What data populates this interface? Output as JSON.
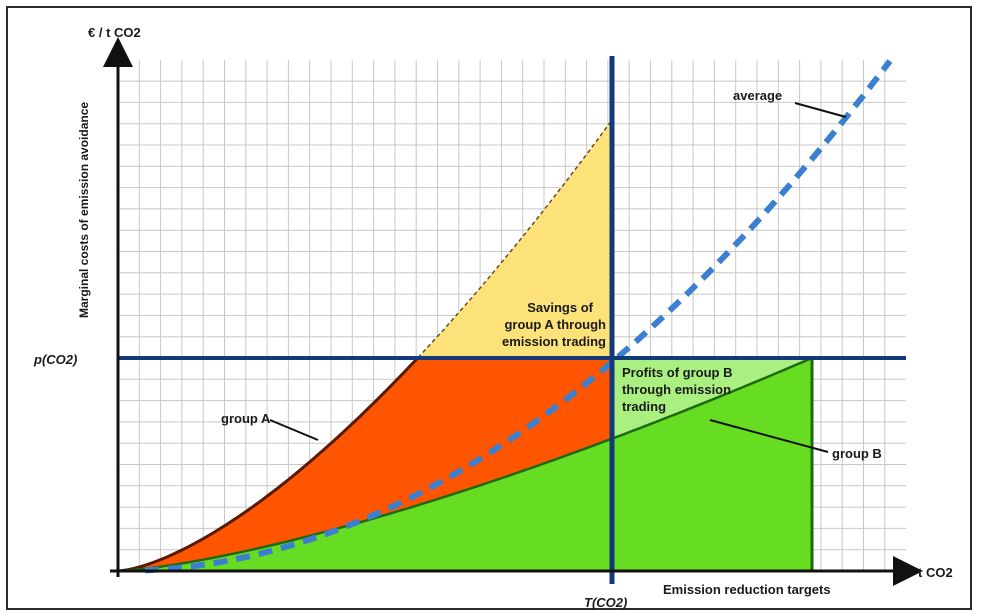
{
  "chart_data": {
    "type": "area",
    "title": "",
    "ylabel": "Marginal costs of emission avoidance",
    "y_unit": "€ / t CO2",
    "x_unit": "t CO2",
    "xlabel": "Emission reduction targets",
    "grid": true,
    "reference_lines": {
      "price": "p(CO2)",
      "target": "T(CO2)"
    },
    "series": [
      {
        "name": "group A",
        "color": "#ff5500"
      },
      {
        "name": "group B",
        "color": "#55dd11"
      },
      {
        "name": "average",
        "color": "#3a7fd0"
      }
    ],
    "annotations": {
      "savings_a": [
        "Savings of",
        "group A through",
        "emission trading"
      ],
      "profits_b": [
        "Profits of group B",
        "through emission",
        "trading"
      ]
    },
    "colors": {
      "group_a_area": "#ff5500",
      "group_a_savings": "#fde27a",
      "group_b_area": "#66dd22",
      "group_b_profits": "#aaf080",
      "reference_line": "#123a7a",
      "average_line": "#3a7fd0",
      "grid": "#c8c8c8"
    }
  }
}
